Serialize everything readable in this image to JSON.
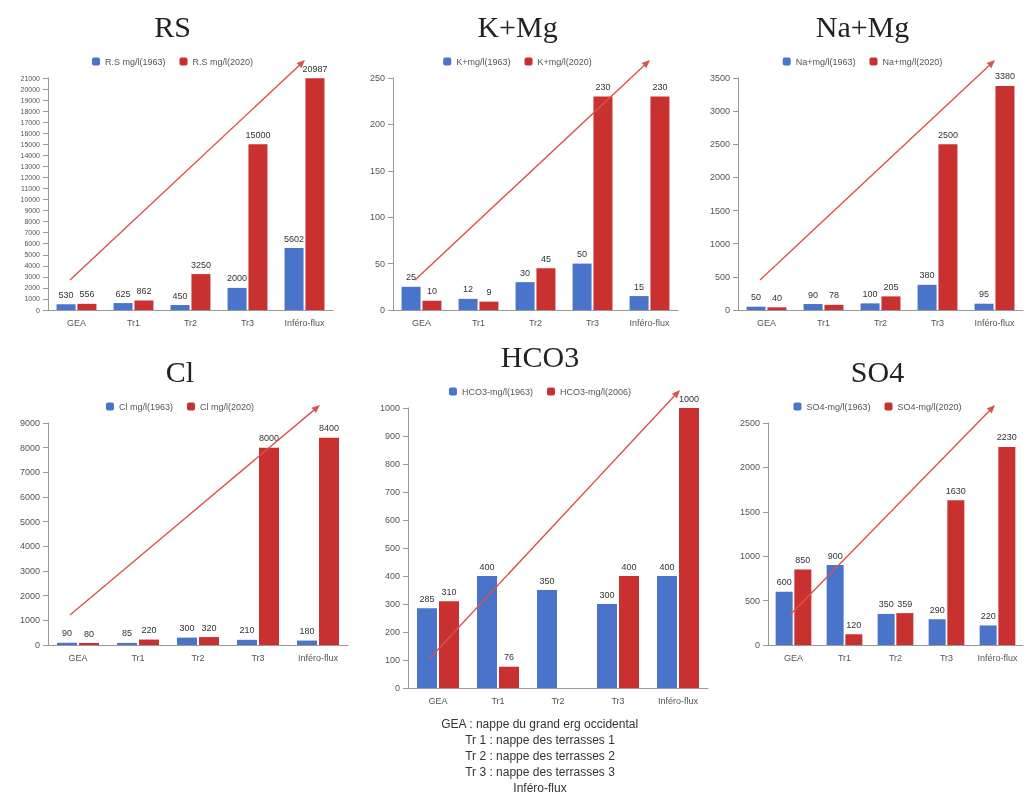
{
  "chart_data": [
    {
      "type": "bar",
      "title": "RS",
      "categories": [
        "GEA",
        "Tr1",
        "Tr2",
        "Tr3",
        "Inféro-flux"
      ],
      "series": [
        {
          "name": "R.S mg/l(1963)",
          "color": "#4a74c9",
          "values": [
            530,
            625,
            450,
            2000,
            5602
          ]
        },
        {
          "name": "R.S mg/l(2020)",
          "color": "#c8312f",
          "values": [
            556,
            862,
            3250,
            15000,
            20987
          ]
        }
      ],
      "ylim": [
        0,
        21000
      ],
      "yticks": [
        0,
        1000,
        2000,
        3000,
        4000,
        5000,
        6000,
        7000,
        8000,
        9000,
        10000,
        11000,
        12000,
        13000,
        14000,
        15000,
        16000,
        17000,
        18000,
        19000,
        20000,
        21000
      ],
      "data_labels": true,
      "legend": "top"
    },
    {
      "type": "bar",
      "title": "K+Mg",
      "categories": [
        "GEA",
        "Tr1",
        "Tr2",
        "Tr3",
        "Inféro-flux"
      ],
      "series": [
        {
          "name": "K+mg/l(1963)",
          "color": "#4a74c9",
          "values": [
            25,
            12,
            30,
            50,
            15
          ]
        },
        {
          "name": "K+mg/l(2020)",
          "color": "#c8312f",
          "values": [
            10,
            9,
            45,
            230,
            230
          ]
        }
      ],
      "ylim": [
        0,
        250
      ],
      "yticks": [
        0,
        50,
        100,
        150,
        200,
        250
      ],
      "data_labels": true,
      "legend": "top"
    },
    {
      "type": "bar",
      "title": "Na+Mg",
      "categories": [
        "GEA",
        "Tr1",
        "Tr2",
        "Tr3",
        "Inféro-flux"
      ],
      "series": [
        {
          "name": "Na+mg/l(1963)",
          "color": "#4a74c9",
          "values": [
            50,
            90,
            100,
            380,
            95
          ]
        },
        {
          "name": "Na+mg/l(2020)",
          "color": "#c8312f",
          "values": [
            40,
            78,
            205,
            2500,
            3380
          ]
        }
      ],
      "ylim": [
        0,
        3500
      ],
      "yticks": [
        0,
        500,
        1000,
        1500,
        2000,
        2500,
        3000,
        3500
      ],
      "data_labels": true,
      "legend": "top"
    },
    {
      "type": "bar",
      "title": "Cl",
      "categories": [
        "GEA",
        "Tr1",
        "Tr2",
        "Tr3",
        "Inféro-flux"
      ],
      "series": [
        {
          "name": "Cl mg/l(1963)",
          "color": "#4a74c9",
          "values": [
            90,
            85,
            300,
            210,
            180
          ]
        },
        {
          "name": "Cl mg/l(2020)",
          "color": "#c8312f",
          "values": [
            80,
            220,
            320,
            8000,
            8400
          ]
        }
      ],
      "ylim": [
        0,
        9000
      ],
      "yticks": [
        0,
        1000,
        2000,
        3000,
        4000,
        5000,
        6000,
        7000,
        8000,
        9000
      ],
      "data_labels": true,
      "legend": "top"
    },
    {
      "type": "bar",
      "title": "HCO3",
      "categories": [
        "GEA",
        "Tr1",
        "Tr2",
        "Tr3",
        "Inféro-flux"
      ],
      "series": [
        {
          "name": "HCO3-mg/l(1963)",
          "color": "#4a74c9",
          "values": [
            285,
            400,
            350,
            300,
            400
          ]
        },
        {
          "name": "HCO3-mg/l(2006)",
          "color": "#c8312f",
          "values": [
            310,
            76,
            null,
            400,
            1000
          ]
        }
      ],
      "ylim": [
        0,
        1000
      ],
      "yticks": [
        0,
        100,
        200,
        300,
        400,
        500,
        600,
        700,
        800,
        900,
        1000
      ],
      "data_labels": true,
      "legend": "top",
      "annotations": [
        "GEA : nappe du grand erg occidental",
        "Tr 1 : nappe des terrasses 1",
        "Tr 2 : nappe des terrasses 2",
        "Tr 3 : nappe des terrasses 3",
        "Inféro-flux"
      ]
    },
    {
      "type": "bar",
      "title": "SO4",
      "categories": [
        "GEA",
        "Tr1",
        "Tr2",
        "Tr3",
        "Inféro-flux"
      ],
      "series": [
        {
          "name": "SO4-mg/l(1963)",
          "color": "#4a74c9",
          "values": [
            600,
            900,
            350,
            290,
            220
          ]
        },
        {
          "name": "SO4-mg/l(2020)",
          "color": "#c8312f",
          "values": [
            850,
            120,
            359,
            1630,
            2230
          ]
        }
      ],
      "ylim": [
        0,
        2500
      ],
      "yticks": [
        0,
        500,
        1000,
        1500,
        2000,
        2500
      ],
      "data_labels": true,
      "legend": "top"
    }
  ]
}
